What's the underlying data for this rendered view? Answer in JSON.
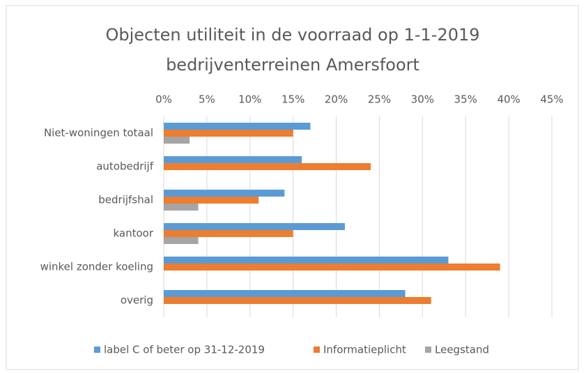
{
  "chart_data": {
    "type": "hbar",
    "title": [
      "Objecten utiliteit in de voorraad op 1-1-2019",
      "bedrijventerreinen Amersfoort"
    ],
    "categories": [
      "Niet-woningen totaal",
      "autobedrijf",
      "bedrijfshal",
      "kantoor",
      "winkel zonder koeling",
      "overig"
    ],
    "series": [
      {
        "name": "label C of beter op 31-12-2019",
        "color": "#5b9bd5",
        "values": [
          17,
          16,
          14,
          21,
          33,
          28
        ]
      },
      {
        "name": "Informatieplicht",
        "color": "#ed7d31",
        "values": [
          15,
          24,
          11,
          15,
          39,
          31
        ]
      },
      {
        "name": "Leegstand",
        "color": "#a5a5a5",
        "values": [
          3,
          0,
          4,
          4,
          0,
          0
        ]
      }
    ],
    "xlim": [
      0,
      45
    ],
    "xticks": [
      {
        "value": 0,
        "label": "0%"
      },
      {
        "value": 5,
        "label": "5%"
      },
      {
        "value": 10,
        "label": "10%"
      },
      {
        "value": 15,
        "label": "15%"
      },
      {
        "value": 20,
        "label": "20%"
      },
      {
        "value": 25,
        "label": "25%"
      },
      {
        "value": 30,
        "label": "30%"
      },
      {
        "value": 35,
        "label": "35%"
      },
      {
        "value": 40,
        "label": "40%"
      },
      {
        "value": 45,
        "label": "45%"
      }
    ],
    "grid": true,
    "legend": "bottom"
  }
}
